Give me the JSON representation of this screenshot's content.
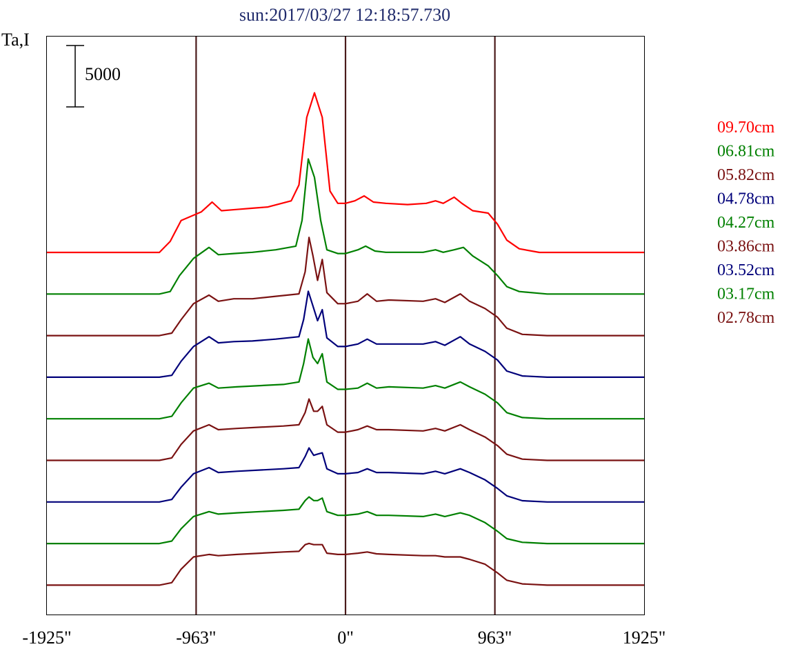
{
  "chart_data": {
    "type": "line",
    "title": "sun:2017/03/27 12:18:57.730",
    "ylabel": "Ta,I",
    "scale_bar_label": "5000",
    "x_ticks": [
      "-1925\"",
      "-963\"",
      "0\"",
      "963\"",
      "1925\""
    ],
    "x_tick_values": [
      -1925,
      -963,
      0,
      963,
      1925
    ],
    "xlim": [
      -1925,
      1925
    ],
    "vertical_lines_at": [
      -963,
      0,
      963
    ],
    "grid": false,
    "legend_position": "right",
    "series": [
      {
        "name": "09.70cm",
        "color": "#ff0000",
        "points": [
          [
            -1925,
            0
          ],
          [
            -1200,
            0
          ],
          [
            -1130,
            900
          ],
          [
            -1060,
            2600
          ],
          [
            -930,
            3300
          ],
          [
            -860,
            4100
          ],
          [
            -800,
            3400
          ],
          [
            -700,
            3500
          ],
          [
            -600,
            3600
          ],
          [
            -500,
            3700
          ],
          [
            -350,
            4200
          ],
          [
            -300,
            5500
          ],
          [
            -250,
            11000
          ],
          [
            -200,
            13000
          ],
          [
            -150,
            11000
          ],
          [
            -100,
            5000
          ],
          [
            -50,
            4000
          ],
          [
            0,
            4000
          ],
          [
            60,
            4200
          ],
          [
            120,
            4600
          ],
          [
            180,
            4100
          ],
          [
            260,
            4000
          ],
          [
            400,
            3900
          ],
          [
            520,
            4000
          ],
          [
            580,
            4200
          ],
          [
            630,
            4000
          ],
          [
            700,
            4500
          ],
          [
            750,
            4000
          ],
          [
            820,
            3400
          ],
          [
            920,
            3200
          ],
          [
            980,
            2300
          ],
          [
            1040,
            1000
          ],
          [
            1120,
            300
          ],
          [
            1250,
            0
          ],
          [
            1925,
            0
          ]
        ]
      },
      {
        "name": "06.81cm",
        "color": "#008000",
        "points": [
          [
            -1925,
            0
          ],
          [
            -1200,
            0
          ],
          [
            -1130,
            200
          ],
          [
            -1070,
            1500
          ],
          [
            -980,
            2900
          ],
          [
            -880,
            3800
          ],
          [
            -820,
            3200
          ],
          [
            -720,
            3300
          ],
          [
            -600,
            3400
          ],
          [
            -450,
            3600
          ],
          [
            -320,
            3900
          ],
          [
            -280,
            6000
          ],
          [
            -240,
            11000
          ],
          [
            -200,
            9500
          ],
          [
            -160,
            6000
          ],
          [
            -120,
            3600
          ],
          [
            -50,
            3300
          ],
          [
            0,
            3300
          ],
          [
            80,
            3600
          ],
          [
            130,
            3900
          ],
          [
            190,
            3500
          ],
          [
            260,
            3400
          ],
          [
            500,
            3400
          ],
          [
            580,
            3600
          ],
          [
            630,
            3400
          ],
          [
            700,
            3600
          ],
          [
            760,
            3800
          ],
          [
            820,
            3100
          ],
          [
            920,
            2300
          ],
          [
            980,
            1500
          ],
          [
            1040,
            600
          ],
          [
            1120,
            200
          ],
          [
            1300,
            0
          ],
          [
            1925,
            0
          ]
        ]
      },
      {
        "name": "05.82cm",
        "color": "#7a1212",
        "points": [
          [
            -1925,
            0
          ],
          [
            -1200,
            0
          ],
          [
            -1120,
            200
          ],
          [
            -1060,
            1300
          ],
          [
            -980,
            2600
          ],
          [
            -880,
            3300
          ],
          [
            -820,
            2800
          ],
          [
            -720,
            3000
          ],
          [
            -600,
            3000
          ],
          [
            -450,
            3200
          ],
          [
            -300,
            3400
          ],
          [
            -260,
            5200
          ],
          [
            -235,
            8000
          ],
          [
            -210,
            6500
          ],
          [
            -180,
            4500
          ],
          [
            -150,
            6200
          ],
          [
            -120,
            3500
          ],
          [
            -50,
            2600
          ],
          [
            0,
            2600
          ],
          [
            80,
            2800
          ],
          [
            140,
            3400
          ],
          [
            200,
            2800
          ],
          [
            280,
            2900
          ],
          [
            500,
            2800
          ],
          [
            580,
            3000
          ],
          [
            640,
            2700
          ],
          [
            740,
            3400
          ],
          [
            800,
            2800
          ],
          [
            900,
            2200
          ],
          [
            980,
            1500
          ],
          [
            1040,
            600
          ],
          [
            1140,
            100
          ],
          [
            1300,
            0
          ],
          [
            1925,
            0
          ]
        ]
      },
      {
        "name": "04.78cm",
        "color": "#00007a",
        "points": [
          [
            -1925,
            0
          ],
          [
            -1200,
            0
          ],
          [
            -1120,
            150
          ],
          [
            -1060,
            1300
          ],
          [
            -980,
            2500
          ],
          [
            -880,
            3300
          ],
          [
            -820,
            2800
          ],
          [
            -720,
            2900
          ],
          [
            -600,
            2950
          ],
          [
            -450,
            3100
          ],
          [
            -300,
            3300
          ],
          [
            -270,
            4700
          ],
          [
            -240,
            7000
          ],
          [
            -210,
            5800
          ],
          [
            -180,
            4600
          ],
          [
            -150,
            5500
          ],
          [
            -120,
            3200
          ],
          [
            -50,
            2500
          ],
          [
            0,
            2500
          ],
          [
            80,
            2700
          ],
          [
            140,
            3100
          ],
          [
            200,
            2700
          ],
          [
            280,
            2700
          ],
          [
            500,
            2700
          ],
          [
            580,
            2900
          ],
          [
            640,
            2600
          ],
          [
            740,
            3300
          ],
          [
            800,
            2700
          ],
          [
            900,
            2100
          ],
          [
            980,
            1400
          ],
          [
            1040,
            500
          ],
          [
            1140,
            100
          ],
          [
            1300,
            0
          ],
          [
            1925,
            0
          ]
        ]
      },
      {
        "name": "04.27cm",
        "color": "#008000",
        "points": [
          [
            -1925,
            0
          ],
          [
            -1200,
            0
          ],
          [
            -1120,
            200
          ],
          [
            -1060,
            1300
          ],
          [
            -980,
            2500
          ],
          [
            -880,
            2900
          ],
          [
            -820,
            2500
          ],
          [
            -700,
            2600
          ],
          [
            -550,
            2700
          ],
          [
            -400,
            2800
          ],
          [
            -300,
            3000
          ],
          [
            -270,
            4500
          ],
          [
            -240,
            6500
          ],
          [
            -210,
            5000
          ],
          [
            -180,
            4500
          ],
          [
            -150,
            5300
          ],
          [
            -120,
            3000
          ],
          [
            -50,
            2400
          ],
          [
            0,
            2400
          ],
          [
            80,
            2500
          ],
          [
            140,
            2900
          ],
          [
            200,
            2500
          ],
          [
            280,
            2600
          ],
          [
            500,
            2500
          ],
          [
            580,
            2700
          ],
          [
            640,
            2500
          ],
          [
            740,
            3000
          ],
          [
            800,
            2600
          ],
          [
            900,
            2000
          ],
          [
            980,
            1300
          ],
          [
            1040,
            500
          ],
          [
            1140,
            100
          ],
          [
            1300,
            0
          ],
          [
            1925,
            0
          ]
        ]
      },
      {
        "name": "03.86cm",
        "color": "#7a1212",
        "points": [
          [
            -1925,
            0
          ],
          [
            -1200,
            0
          ],
          [
            -1120,
            200
          ],
          [
            -1060,
            1300
          ],
          [
            -980,
            2400
          ],
          [
            -880,
            2900
          ],
          [
            -820,
            2500
          ],
          [
            -700,
            2600
          ],
          [
            -550,
            2700
          ],
          [
            -400,
            2800
          ],
          [
            -300,
            2900
          ],
          [
            -260,
            3900
          ],
          [
            -235,
            5000
          ],
          [
            -205,
            4000
          ],
          [
            -180,
            4000
          ],
          [
            -150,
            4400
          ],
          [
            -120,
            2900
          ],
          [
            -50,
            2300
          ],
          [
            0,
            2300
          ],
          [
            80,
            2500
          ],
          [
            140,
            2800
          ],
          [
            200,
            2500
          ],
          [
            280,
            2500
          ],
          [
            500,
            2400
          ],
          [
            580,
            2600
          ],
          [
            640,
            2400
          ],
          [
            740,
            2900
          ],
          [
            800,
            2500
          ],
          [
            900,
            1900
          ],
          [
            980,
            1200
          ],
          [
            1040,
            500
          ],
          [
            1140,
            100
          ],
          [
            1300,
            0
          ],
          [
            1925,
            0
          ]
        ]
      },
      {
        "name": "03.52cm",
        "color": "#00007a",
        "points": [
          [
            -1925,
            0
          ],
          [
            -1200,
            0
          ],
          [
            -1120,
            200
          ],
          [
            -1060,
            1200
          ],
          [
            -980,
            2300
          ],
          [
            -880,
            2800
          ],
          [
            -820,
            2400
          ],
          [
            -700,
            2500
          ],
          [
            -550,
            2600
          ],
          [
            -400,
            2700
          ],
          [
            -300,
            2800
          ],
          [
            -260,
            3700
          ],
          [
            -235,
            4400
          ],
          [
            -205,
            3800
          ],
          [
            -180,
            3900
          ],
          [
            -150,
            4000
          ],
          [
            -120,
            2700
          ],
          [
            -50,
            2300
          ],
          [
            0,
            2300
          ],
          [
            80,
            2400
          ],
          [
            140,
            2700
          ],
          [
            200,
            2400
          ],
          [
            280,
            2400
          ],
          [
            500,
            2300
          ],
          [
            580,
            2500
          ],
          [
            640,
            2300
          ],
          [
            740,
            2700
          ],
          [
            800,
            2400
          ],
          [
            900,
            1800
          ],
          [
            980,
            1100
          ],
          [
            1040,
            500
          ],
          [
            1140,
            100
          ],
          [
            1300,
            0
          ],
          [
            1925,
            0
          ]
        ]
      },
      {
        "name": "03.17cm",
        "color": "#008000",
        "points": [
          [
            -1925,
            0
          ],
          [
            -1200,
            0
          ],
          [
            -1120,
            200
          ],
          [
            -1060,
            1200
          ],
          [
            -980,
            2200
          ],
          [
            -880,
            2600
          ],
          [
            -820,
            2400
          ],
          [
            -700,
            2500
          ],
          [
            -550,
            2600
          ],
          [
            -400,
            2700
          ],
          [
            -300,
            2800
          ],
          [
            -260,
            3500
          ],
          [
            -235,
            3800
          ],
          [
            -205,
            3500
          ],
          [
            -180,
            3500
          ],
          [
            -150,
            3700
          ],
          [
            -120,
            2600
          ],
          [
            -50,
            2300
          ],
          [
            0,
            2300
          ],
          [
            80,
            2400
          ],
          [
            140,
            2600
          ],
          [
            200,
            2300
          ],
          [
            280,
            2300
          ],
          [
            500,
            2200
          ],
          [
            580,
            2400
          ],
          [
            640,
            2200
          ],
          [
            740,
            2500
          ],
          [
            800,
            2300
          ],
          [
            900,
            1700
          ],
          [
            980,
            1000
          ],
          [
            1040,
            400
          ],
          [
            1140,
            100
          ],
          [
            1300,
            0
          ],
          [
            1925,
            0
          ]
        ]
      },
      {
        "name": "02.78cm",
        "color": "#7a1212",
        "points": [
          [
            -1925,
            0
          ],
          [
            -1200,
            0
          ],
          [
            -1120,
            200
          ],
          [
            -1060,
            1300
          ],
          [
            -980,
            2300
          ],
          [
            -880,
            2500
          ],
          [
            -820,
            2400
          ],
          [
            -700,
            2500
          ],
          [
            -550,
            2600
          ],
          [
            -400,
            2700
          ],
          [
            -300,
            2750
          ],
          [
            -260,
            3300
          ],
          [
            -235,
            3400
          ],
          [
            -205,
            3300
          ],
          [
            -180,
            3300
          ],
          [
            -150,
            3300
          ],
          [
            -120,
            2600
          ],
          [
            -50,
            2500
          ],
          [
            0,
            2500
          ],
          [
            80,
            2600
          ],
          [
            140,
            2700
          ],
          [
            200,
            2550
          ],
          [
            280,
            2500
          ],
          [
            500,
            2400
          ],
          [
            580,
            2400
          ],
          [
            640,
            2300
          ],
          [
            740,
            2300
          ],
          [
            800,
            2100
          ],
          [
            900,
            1700
          ],
          [
            980,
            1000
          ],
          [
            1040,
            400
          ],
          [
            1140,
            100
          ],
          [
            1300,
            0
          ],
          [
            1925,
            0
          ]
        ]
      }
    ]
  }
}
